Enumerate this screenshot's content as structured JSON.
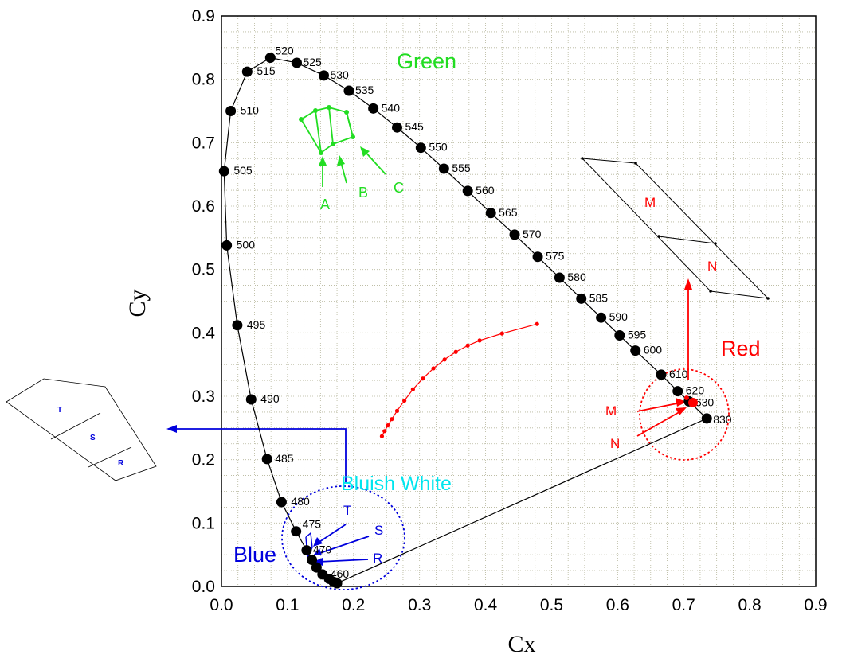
{
  "chart_data": {
    "type": "scatter",
    "xlabel": "Cx",
    "ylabel": "Cy",
    "xlim": [
      0.0,
      0.9
    ],
    "ylim": [
      0.0,
      0.9
    ],
    "xticks": [
      "0.0",
      "0.1",
      "0.2",
      "0.3",
      "0.4",
      "0.5",
      "0.6",
      "0.7",
      "0.8",
      "0.9"
    ],
    "yticks": [
      "0.0",
      "0.1",
      "0.2",
      "0.3",
      "0.4",
      "0.5",
      "0.6",
      "0.7",
      "0.8",
      "0.9"
    ],
    "grid": true,
    "series": [
      {
        "type": "line+markers",
        "color": "#000000",
        "points": [
          {
            "label": "",
            "x": 0.175,
            "y": 0.005
          },
          {
            "label": "",
            "x": 0.17,
            "y": 0.007
          },
          {
            "label": "",
            "x": 0.163,
            "y": 0.012
          },
          {
            "label": "460",
            "x": 0.153,
            "y": 0.019
          },
          {
            "label": "",
            "x": 0.144,
            "y": 0.03
          },
          {
            "label": "",
            "x": 0.137,
            "y": 0.042
          },
          {
            "label": "470",
            "x": 0.129,
            "y": 0.057
          },
          {
            "label": "475",
            "x": 0.113,
            "y": 0.087
          },
          {
            "label": "480",
            "x": 0.091,
            "y": 0.133
          },
          {
            "label": "485",
            "x": 0.069,
            "y": 0.201
          },
          {
            "label": "490",
            "x": 0.045,
            "y": 0.295
          },
          {
            "label": "495",
            "x": 0.024,
            "y": 0.412
          },
          {
            "label": "500",
            "x": 0.008,
            "y": 0.538
          },
          {
            "label": "505",
            "x": 0.004,
            "y": 0.655
          },
          {
            "label": "510",
            "x": 0.014,
            "y": 0.75
          },
          {
            "label": "515",
            "x": 0.039,
            "y": 0.812
          },
          {
            "label": "520",
            "x": 0.074,
            "y": 0.834
          },
          {
            "label": "525",
            "x": 0.114,
            "y": 0.826
          },
          {
            "label": "530",
            "x": 0.155,
            "y": 0.806
          },
          {
            "label": "535",
            "x": 0.193,
            "y": 0.782
          },
          {
            "label": "540",
            "x": 0.23,
            "y": 0.754
          },
          {
            "label": "545",
            "x": 0.266,
            "y": 0.724
          },
          {
            "label": "550",
            "x": 0.302,
            "y": 0.692
          },
          {
            "label": "555",
            "x": 0.337,
            "y": 0.659
          },
          {
            "label": "560",
            "x": 0.373,
            "y": 0.624
          },
          {
            "label": "565",
            "x": 0.408,
            "y": 0.589
          },
          {
            "label": "570",
            "x": 0.444,
            "y": 0.555
          },
          {
            "label": "575",
            "x": 0.479,
            "y": 0.52
          },
          {
            "label": "580",
            "x": 0.512,
            "y": 0.487
          },
          {
            "label": "585",
            "x": 0.545,
            "y": 0.454
          },
          {
            "label": "590",
            "x": 0.575,
            "y": 0.424
          },
          {
            "label": "595",
            "x": 0.603,
            "y": 0.396
          },
          {
            "label": "600",
            "x": 0.627,
            "y": 0.372
          },
          {
            "label": "610",
            "x": 0.666,
            "y": 0.334
          },
          {
            "label": "620",
            "x": 0.691,
            "y": 0.308
          },
          {
            "label": "630",
            "x": 0.708,
            "y": 0.292
          },
          {
            "label": "830",
            "x": 0.735,
            "y": 0.265
          }
        ]
      },
      {
        "type": "line+markers",
        "color": "#ff0000",
        "points": [
          {
            "x": 0.243,
            "y": 0.237
          },
          {
            "x": 0.247,
            "y": 0.245
          },
          {
            "x": 0.252,
            "y": 0.254
          },
          {
            "x": 0.258,
            "y": 0.264
          },
          {
            "x": 0.266,
            "y": 0.277
          },
          {
            "x": 0.277,
            "y": 0.293
          },
          {
            "x": 0.29,
            "y": 0.311
          },
          {
            "x": 0.305,
            "y": 0.328
          },
          {
            "x": 0.321,
            "y": 0.344
          },
          {
            "x": 0.338,
            "y": 0.358
          },
          {
            "x": 0.355,
            "y": 0.37
          },
          {
            "x": 0.373,
            "y": 0.38
          },
          {
            "x": 0.391,
            "y": 0.388
          },
          {
            "x": 0.425,
            "y": 0.399
          },
          {
            "x": 0.478,
            "y": 0.414
          }
        ]
      }
    ],
    "annotations": {
      "green_label": "Green",
      "red_label": "Red",
      "blue_label": "Blue",
      "bluish_white_label": "Bluish White",
      "green_letters": [
        "A",
        "B",
        "C"
      ],
      "blue_letters": [
        "T",
        "S",
        "R"
      ],
      "red_letters": [
        "M",
        "N"
      ],
      "inset_red_letters": [
        "M",
        "N"
      ],
      "inset_blue_letters": [
        "T",
        "S",
        "R"
      ]
    },
    "colors": {
      "green": "#22dd22",
      "red": "#ff0000",
      "blue": "#0000dd",
      "cyan": "#00e5ee",
      "grid": "#b5b59a"
    }
  }
}
